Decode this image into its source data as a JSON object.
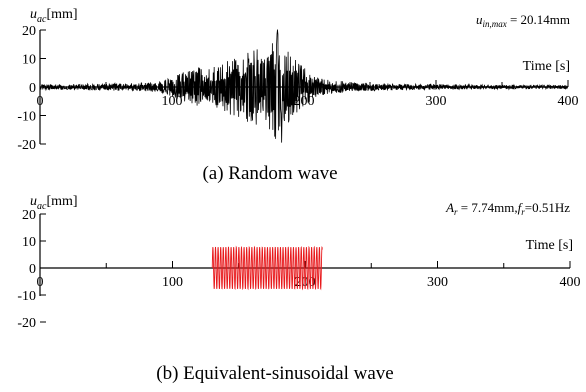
{
  "chart_data": [
    {
      "type": "line",
      "caption": "(a) Random wave",
      "ylabel_base": "u",
      "ylabel_sub": "ac",
      "ylabel_unit": "[mm]",
      "xlabel": "Time [s]",
      "annotation_var": "u",
      "annotation_sub": "in,max",
      "annotation_value": " = 20.14mm",
      "xlim": [
        0,
        400
      ],
      "ylim": [
        -20,
        20
      ],
      "xticks": [
        0,
        100,
        200,
        300,
        400
      ],
      "xtick_labels": [
        "0",
        "100",
        "200",
        "300",
        "400"
      ],
      "yticks": [
        -20,
        -10,
        0,
        10,
        20
      ],
      "ytick_labels": [
        "-20",
        "-10",
        "0",
        "10",
        "20"
      ],
      "series": [
        {
          "color": "#000000",
          "x": [
            0,
            20,
            40,
            60,
            80,
            90,
            100,
            105,
            110,
            115,
            120,
            125,
            130,
            135,
            140,
            145,
            150,
            155,
            160,
            165,
            170,
            175,
            180,
            185,
            190,
            195,
            200,
            205,
            210,
            220,
            230,
            240,
            260,
            280,
            300,
            320,
            340,
            360,
            380,
            400
          ],
          "amp": [
            1.0,
            1.0,
            1.2,
            1.3,
            1.5,
            2.0,
            3.5,
            4.5,
            5.5,
            6.0,
            7.0,
            6.5,
            7.0,
            8.5,
            9.0,
            10.0,
            11.0,
            12.0,
            12.5,
            14.0,
            11.0,
            17.0,
            20.14,
            15.0,
            11.5,
            9.0,
            7.0,
            5.0,
            3.5,
            2.5,
            2.0,
            1.5,
            1.3,
            1.0,
            1.0,
            0.9,
            0.8,
            0.8,
            0.7,
            0.7
          ]
        }
      ]
    },
    {
      "type": "line",
      "caption": "(b) Equivalent-sinusoidal wave",
      "ylabel_base": "u",
      "ylabel_sub": "ac",
      "ylabel_unit": "[mm]",
      "xlabel": "Time [s]",
      "annotation_parts": [
        "A",
        "r",
        " = 7.74mm,",
        "f",
        "r",
        "=0.51Hz"
      ],
      "amplitude": 7.74,
      "frequency": 0.51,
      "t_start": 130,
      "t_end": 213,
      "xlim": [
        0,
        400
      ],
      "ylim": [
        -20,
        20
      ],
      "xticks": [
        0,
        100,
        200,
        300,
        400
      ],
      "xtick_labels": [
        "0",
        "100",
        "200",
        "300",
        "400"
      ],
      "yticks": [
        -20,
        -10,
        0,
        10,
        20
      ],
      "ytick_labels": [
        "-20",
        "-10",
        "0",
        "10",
        "20"
      ],
      "series": [
        {
          "color": "#e8191c"
        }
      ]
    }
  ]
}
